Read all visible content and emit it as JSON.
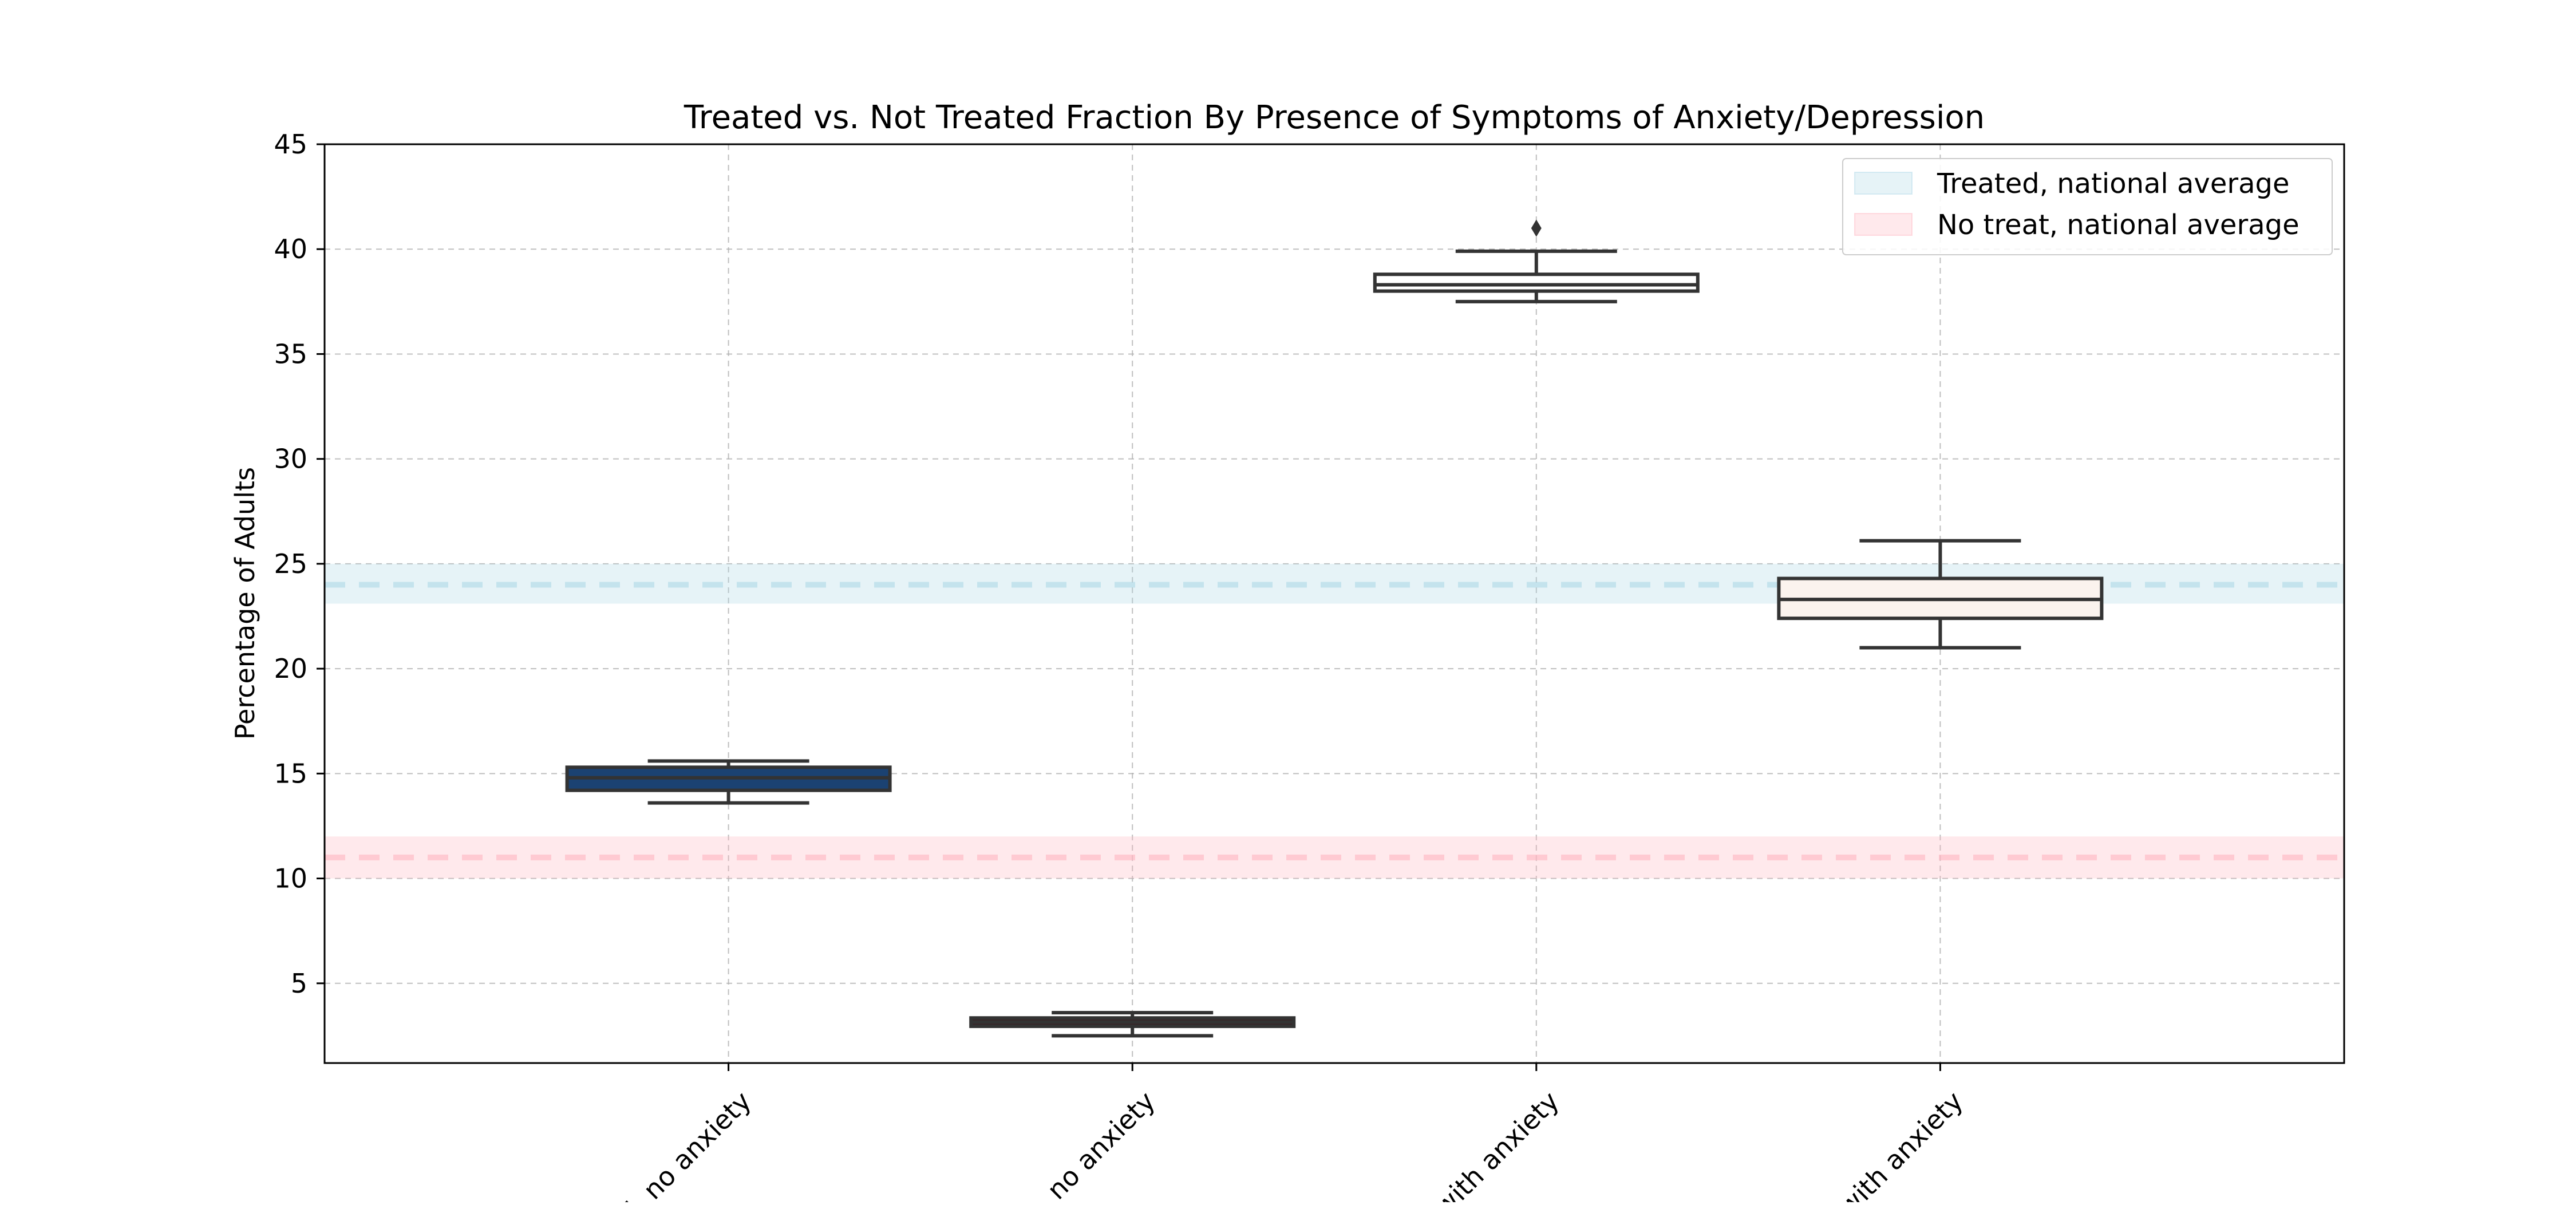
{
  "chart_data": {
    "type": "box",
    "title": "Treated vs. Not Treated Fraction By Presence of Symptoms of Anxiety/Depression",
    "xlabel": "",
    "ylabel": "Percentage of Adults",
    "ylim": [
      1.2,
      45
    ],
    "yticks": [
      5,
      10,
      15,
      20,
      25,
      30,
      35,
      40,
      45
    ],
    "grid": true,
    "legend_position": "top-right",
    "categories": [
      "Treated, no anxiety",
      "No treat, no anxiety",
      "Treated, with anxiety",
      "No treat, with anxiety"
    ],
    "categories_visible_text": [
      "d, no anxiety",
      "t, no anxiety",
      "with anxiety",
      "with anxiety"
    ],
    "boxes": [
      {
        "category": "Treated, no anxiety",
        "whisker_low": 13.6,
        "q1": 14.2,
        "median": 14.8,
        "q3": 15.3,
        "whisker_high": 15.6,
        "outliers": [],
        "color": "#1b4272"
      },
      {
        "category": "No treat, no anxiety",
        "whisker_low": 2.5,
        "q1": 2.95,
        "median": 3.15,
        "q3": 3.35,
        "whisker_high": 3.6,
        "outliers": [],
        "color": "#3a2226"
      },
      {
        "category": "Treated, with anxiety",
        "whisker_low": 37.5,
        "q1": 38.0,
        "median": 38.3,
        "q3": 38.8,
        "whisker_high": 39.9,
        "outliers": [
          41.0
        ],
        "color": "#ffffff"
      },
      {
        "category": "No treat, with anxiety",
        "whisker_low": 21.0,
        "q1": 22.4,
        "median": 23.3,
        "q3": 24.3,
        "whisker_high": 26.1,
        "outliers": [],
        "color": "#fbf3ee"
      }
    ],
    "reference_bands": [
      {
        "name": "Treated, national average",
        "value": 24.0,
        "low": 23.1,
        "high": 25.0,
        "color": "#add8e6"
      },
      {
        "name": "No treat, national average",
        "value": 11.0,
        "low": 10.0,
        "high": 12.0,
        "color": "#ffb6c1"
      }
    ],
    "legend": [
      "Treated, national average",
      "No treat, national average"
    ]
  }
}
